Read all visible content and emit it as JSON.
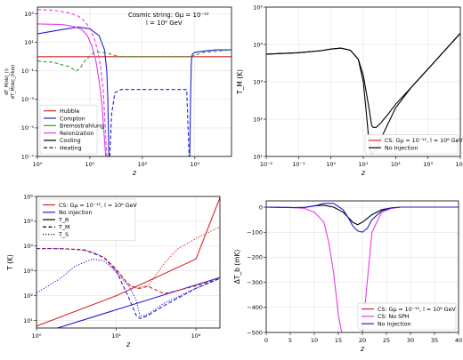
{
  "chart_data": [
    {
      "type": "line",
      "annotation_lines": [
        "Cosmic string: Gμ = 10⁻¹²",
        "l = 10⁶ GeV"
      ],
      "xlabel": "z",
      "ylabel_top": "dT_M/dz|_(i)",
      "ylabel_bottom": "dT_M/dz|_(Hub)",
      "xscale": "log",
      "yscale": "log",
      "xlim": [
        1,
        5000
      ],
      "ylim": [
        1e-07,
        3000
      ],
      "x_ticks": [
        "10⁰",
        "10¹",
        "10²",
        "10³"
      ],
      "y_ticks": [
        "10⁻⁷",
        "10⁻⁵",
        "10⁻³",
        "10⁻¹",
        "10¹",
        "10³"
      ],
      "legend": [
        "Hubble",
        "Compton",
        "Bremsstrahlung",
        "Reionization",
        "Cooling",
        "Heating"
      ],
      "legend_position": "lower-left",
      "colors": {
        "Hubble": "#d62728",
        "Compton": "#1f1fd6",
        "Bremsstrahlung": "#2ca02c",
        "Reionization": "#e63ce6",
        "Cooling": "#000000"
      },
      "series": [
        {
          "name": "Hubble",
          "style": "solid",
          "x": [
            1,
            5000
          ],
          "y": [
            1,
            1
          ]
        },
        {
          "name": "Compton",
          "style": "solid",
          "x": [
            1,
            3,
            6,
            10,
            15,
            19,
            21,
            22,
            23
          ],
          "y": [
            40,
            80,
            120,
            90,
            30,
            3,
            0.1,
            0.001,
            1e-07
          ]
        },
        {
          "name": "Compton",
          "style": "solid",
          "x": [
            800,
            830,
            860,
            900,
            1000,
            1500,
            2500,
            5000
          ],
          "y": [
            1e-07,
            0.001,
            0.5,
            1.5,
            2,
            2.5,
            3,
            3
          ]
        },
        {
          "name": "Compton",
          "style": "dashed",
          "x": [
            24,
            26,
            30,
            40,
            60,
            100,
            200,
            400,
            700,
            780
          ],
          "y": [
            1e-07,
            0.0001,
            0.003,
            0.005,
            0.005,
            0.005,
            0.005,
            0.005,
            0.005,
            1e-07
          ]
        },
        {
          "name": "Bremsstrahlung",
          "style": "dashed",
          "x": [
            1,
            2,
            4,
            5.5,
            6.5,
            8,
            12,
            20,
            30,
            40
          ],
          "y": [
            0.5,
            0.4,
            0.2,
            0.1,
            0.15,
            0.5,
            2,
            2,
            1.2,
            1
          ]
        },
        {
          "name": "Bremsstrahlung",
          "style": "dashed",
          "x": [
            40,
            100,
            400,
            800,
            1500,
            5000
          ],
          "y": [
            1,
            1,
            1,
            1,
            2,
            3
          ]
        },
        {
          "name": "Reionization",
          "style": "solid",
          "x": [
            1,
            3,
            5,
            7,
            9,
            11,
            13,
            15,
            17,
            20
          ],
          "y": [
            200,
            180,
            130,
            80,
            30,
            5,
            0.5,
            0.02,
            0.0005,
            1e-07
          ]
        },
        {
          "name": "Reionization",
          "style": "dashed",
          "x": [
            1,
            2,
            4,
            6,
            8,
            10,
            12,
            14,
            16,
            18,
            21
          ],
          "y": [
            2000,
            1800,
            1200,
            700,
            300,
            100,
            20,
            3,
            0.2,
            0.005,
            1e-07
          ]
        }
      ]
    },
    {
      "type": "line",
      "xlabel": "z",
      "ylabel": "T_M (K)",
      "xscale": "log",
      "yscale": "log",
      "xlim": [
        0.01,
        10000
      ],
      "ylim": [
        10,
        100000
      ],
      "x_ticks": [
        "10⁻²",
        "10⁻¹",
        "10⁰",
        "10¹",
        "10²",
        "10³",
        "10⁴"
      ],
      "y_ticks": [
        "10¹",
        "10²",
        "10³",
        "10⁴",
        "10⁵"
      ],
      "legend": [
        "CS: Gμ = 10⁻¹², l = 10⁶ GeV",
        "No Injection"
      ],
      "legend_position": "lower-right",
      "colors": {
        "CS": "#d62728",
        "No Injection": "#000000"
      },
      "series": [
        {
          "name": "CS: Gμ = 10⁻¹², l = 10⁶ GeV",
          "style": "solid",
          "x": [
            0.01,
            0.1,
            0.5,
            1,
            2,
            4,
            7,
            10,
            15,
            18,
            20,
            25,
            35,
            60,
            100,
            300,
            1000,
            10000
          ],
          "y": [
            5500,
            6000,
            6800,
            7500,
            8000,
            7000,
            4000,
            1500,
            200,
            70,
            60,
            60,
            80,
            140,
            250,
            700,
            2200,
            20000
          ]
        },
        {
          "name": "No Injection",
          "style": "solid",
          "x": [
            0.01,
            0.1,
            0.5,
            1,
            2,
            4,
            7,
            10,
            12,
            15,
            18,
            20,
            25,
            35,
            60,
            100,
            300,
            1000,
            10000
          ],
          "y": [
            5500,
            6000,
            6800,
            7500,
            8000,
            7000,
            4000,
            1000,
            200,
            25,
            12,
            12,
            16,
            30,
            80,
            200,
            700,
            2200,
            20000
          ]
        }
      ]
    },
    {
      "type": "line",
      "xlabel": "z",
      "ylabel": "T (K)",
      "xscale": "log",
      "yscale": "log",
      "xlim": [
        1,
        200
      ],
      "ylim": [
        5,
        1000000
      ],
      "x_ticks": [
        "10⁰",
        "10¹",
        "10²"
      ],
      "y_ticks": [
        "10¹",
        "10²",
        "10³",
        "10⁴",
        "10⁵",
        "10⁶"
      ],
      "legend": [
        "CS: Gμ = 10⁻¹², l = 10⁶ GeV",
        "No injection",
        "T_R",
        "T_M",
        "T_S"
      ],
      "legend_position": "upper-left",
      "colors": {
        "CS": "#d62728",
        "No injection": "#1f1fd6"
      },
      "series": [
        {
          "name": "CS T_R",
          "style": "solid",
          "color": "#d62728",
          "x": [
            1,
            10,
            100,
            200
          ],
          "y": [
            6,
            100,
            3000,
            900000
          ]
        },
        {
          "name": "No injection T_R",
          "style": "solid",
          "color": "#1f1fd6",
          "x": [
            1,
            200
          ],
          "y": [
            2.725,
            548
          ]
        },
        {
          "name": "CS T_M",
          "style": "dashed",
          "color": "#d62728",
          "x": [
            1,
            2,
            4,
            7,
            10,
            14,
            18,
            20,
            25,
            40,
            100,
            200
          ],
          "y": [
            8000,
            7900,
            7000,
            3500,
            1200,
            300,
            200,
            200,
            240,
            120,
            250,
            500
          ]
        },
        {
          "name": "No injection T_M",
          "style": "dashed",
          "color": "#1f1fd6",
          "x": [
            1,
            2,
            4,
            7,
            10,
            14,
            18,
            20,
            25,
            40,
            100,
            200
          ],
          "y": [
            8000,
            7900,
            7000,
            3500,
            1000,
            100,
            15,
            12,
            16,
            40,
            200,
            500
          ]
        },
        {
          "name": "CS T_S",
          "style": "dotted",
          "color": "#d62728",
          "x": [
            1,
            2,
            3,
            5,
            7,
            10,
            15,
            18,
            20,
            25,
            40,
            60,
            100,
            200
          ],
          "y": [
            8000,
            7900,
            7500,
            6000,
            3500,
            1000,
            250,
            200,
            220,
            250,
            2000,
            8000,
            20000,
            60000
          ]
        },
        {
          "name": "No injection T_S",
          "style": "dotted",
          "color": "#1f1fd6",
          "x": [
            1,
            2,
            3,
            5,
            7,
            10,
            15,
            18,
            20,
            25,
            40,
            100,
            200
          ],
          "y": [
            130,
            500,
            1500,
            3000,
            2500,
            900,
            200,
            60,
            14,
            18,
            50,
            200,
            500
          ]
        }
      ]
    },
    {
      "type": "line",
      "xlabel": "z",
      "ylabel": "ΔT_b (mK)",
      "xscale": "linear",
      "yscale": "linear",
      "xlim": [
        0,
        40
      ],
      "ylim": [
        -500,
        25
      ],
      "x_ticks": [
        "0",
        "5",
        "10",
        "15",
        "20",
        "25",
        "30",
        "35",
        "40"
      ],
      "y_ticks": [
        "−500",
        "−400",
        "−300",
        "−200",
        "−100",
        "0"
      ],
      "legend": [
        "CS: Gμ = 10⁻¹², l = 10⁶ GeV",
        "CS: No SPH",
        "No Injection"
      ],
      "legend_position": "lower-right",
      "colors": {
        "CS": "#d62728",
        "CS: No SPH": "#e63ce6",
        "No Injection": "#1f1fd6"
      },
      "series": [
        {
          "name": "CS: Gμ = 10⁻¹², l = 10⁶ GeV",
          "style": "solid",
          "x": [
            0,
            6,
            8,
            10,
            12,
            14,
            16,
            17,
            18,
            19,
            20,
            22,
            24,
            26,
            28,
            30,
            35,
            40
          ],
          "y": [
            0,
            -2,
            -1,
            5,
            8,
            0,
            -20,
            -40,
            -60,
            -70,
            -60,
            -30,
            -10,
            -3,
            0,
            0,
            0,
            0
          ]
        },
        {
          "name": "CS: No SPH",
          "style": "solid",
          "x": [
            0,
            6,
            8,
            10,
            12,
            13,
            14,
            15,
            16,
            16.5,
            18,
            19,
            20,
            21,
            22,
            24,
            26,
            28,
            30,
            35,
            40
          ],
          "y": [
            0,
            -2,
            -5,
            -20,
            -60,
            -140,
            -260,
            -430,
            -530,
            -530,
            -530,
            -530,
            -500,
            -300,
            -100,
            -20,
            -5,
            0,
            0,
            0,
            0
          ]
        },
        {
          "name": "No Injection",
          "style": "solid",
          "x": [
            0,
            6,
            8,
            10,
            12,
            14,
            16,
            17,
            18,
            19,
            20,
            21,
            22,
            24,
            26,
            28,
            30,
            35,
            40
          ],
          "y": [
            0,
            -2,
            -1,
            5,
            15,
            15,
            -10,
            -40,
            -75,
            -95,
            -100,
            -85,
            -50,
            -15,
            -3,
            0,
            0,
            0,
            0
          ]
        }
      ]
    }
  ]
}
